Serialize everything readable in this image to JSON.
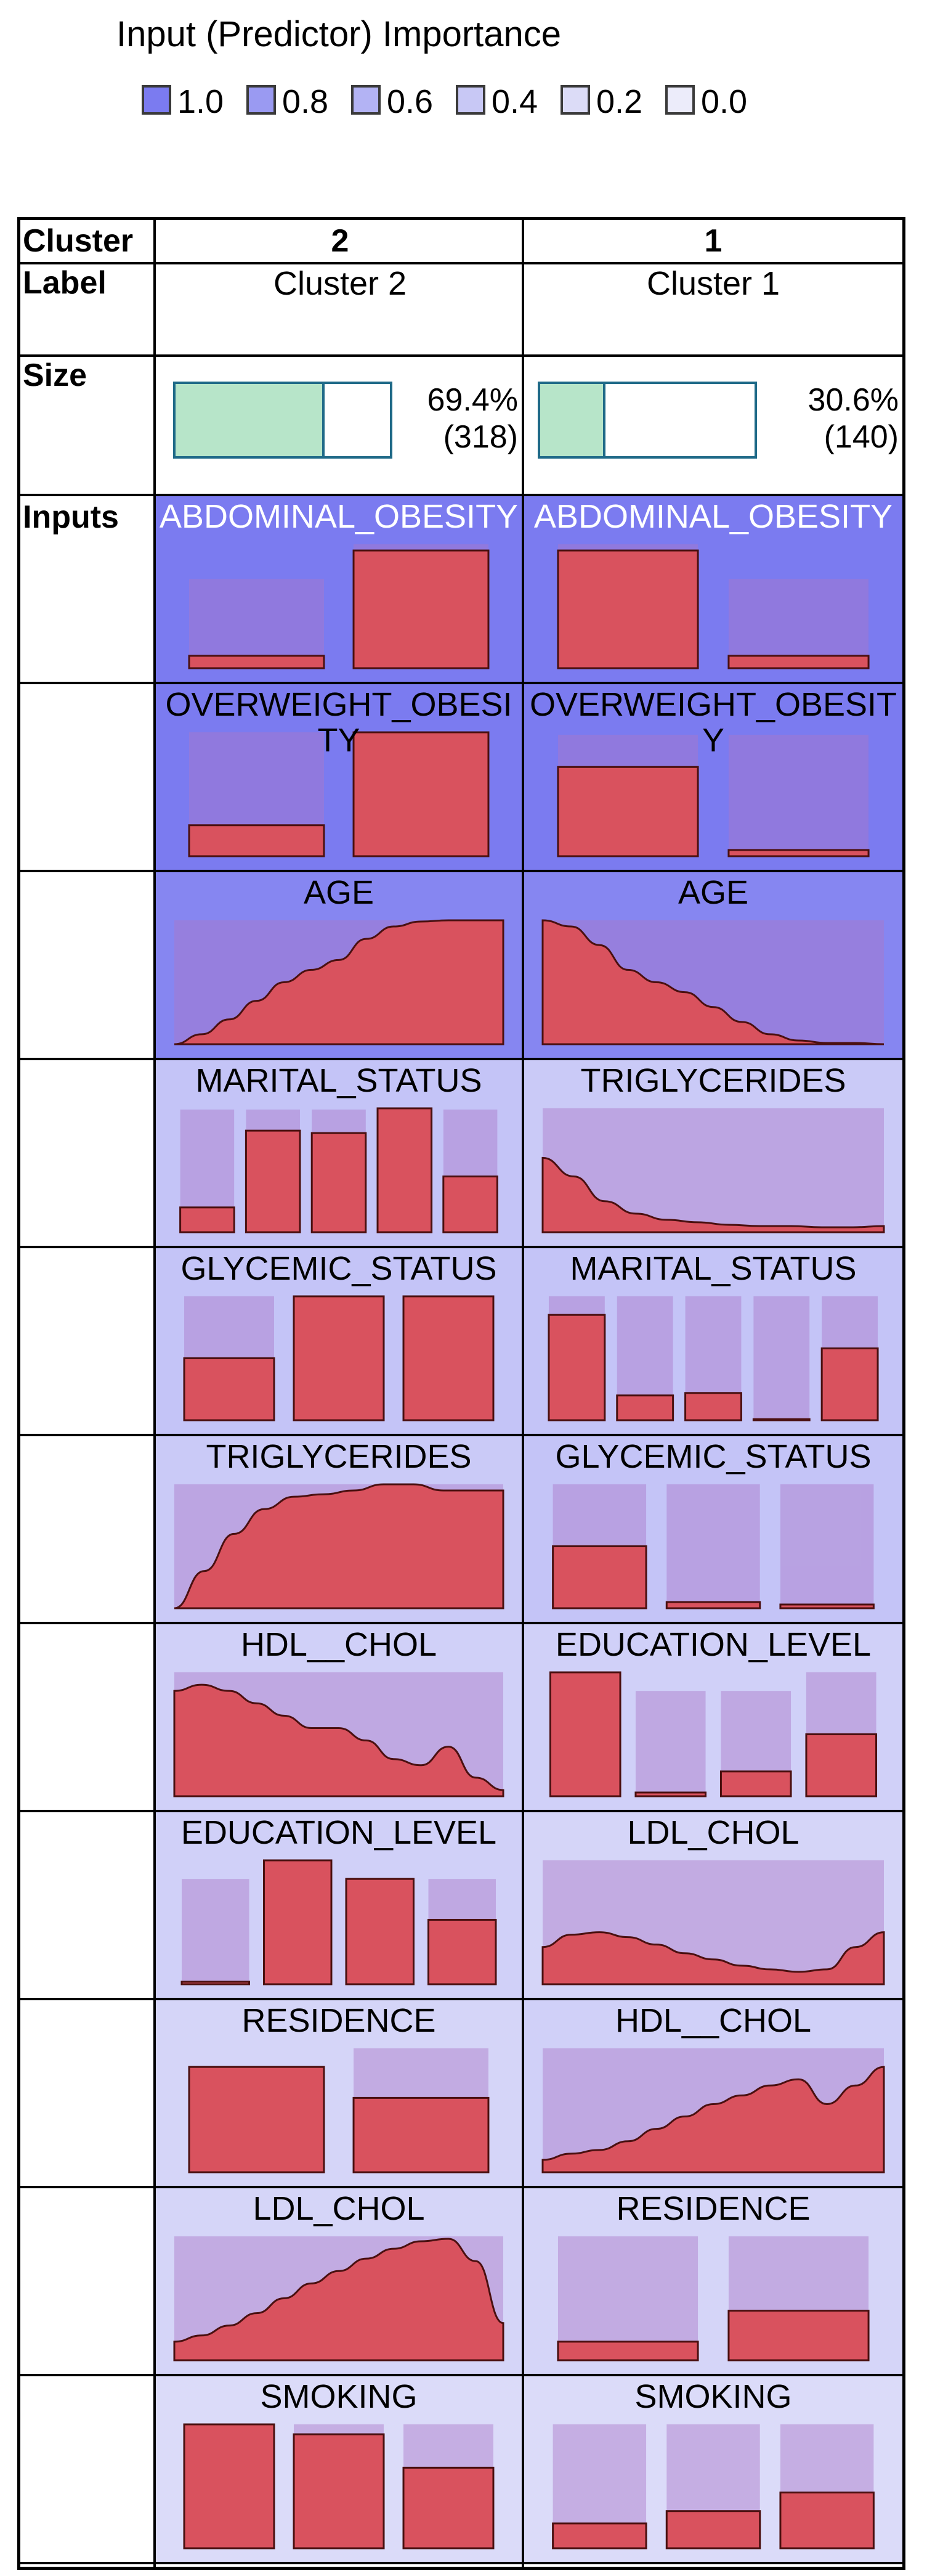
{
  "title": "Input (Predictor) Importance",
  "legend": [
    {
      "label": "1.0",
      "color": "#7b7bf0"
    },
    {
      "label": "0.8",
      "color": "#9a9af2"
    },
    {
      "label": "0.6",
      "color": "#b3b3f4"
    },
    {
      "label": "0.4",
      "color": "#c8c8f5"
    },
    {
      "label": "0.2",
      "color": "#dcdcf7"
    },
    {
      "label": "0.0",
      "color": "#ececfa"
    }
  ],
  "header": {
    "cluster_label": "Cluster",
    "label_label": "Label",
    "size_label": "Size",
    "inputs_label": "Inputs"
  },
  "clusters": [
    {
      "id": "2",
      "label": "Cluster 2",
      "size_pct": "69.4%",
      "size_n": "(318)",
      "size_fraction": 0.694
    },
    {
      "id": "1",
      "label": "Cluster 1",
      "size_pct": "30.6%",
      "size_n": "(140)",
      "size_fraction": 0.306
    }
  ],
  "chart_data": {
    "type": "table",
    "title": "Input (Predictor) Importance",
    "importance_scale": [
      1.0,
      0.8,
      0.6,
      0.4,
      0.2,
      0.0
    ],
    "columns": [
      {
        "cluster": "2",
        "cells": [
          {
            "name": "ABDOMINAL_OBESITY",
            "importance": 1.0,
            "kind": "bar",
            "cluster_values": [
              0.1,
              0.95
            ],
            "overall_values": [
              0.72,
              1.0
            ]
          },
          {
            "name": "OVERWEIGHT_\nOBESITY",
            "importance": 1.0,
            "kind": "bar",
            "cluster_values": [
              0.25,
              1.0
            ],
            "overall_values": [
              1.0,
              1.0
            ]
          },
          {
            "name": "AGE",
            "importance": 0.9,
            "kind": "area",
            "cluster_values": [
              0.0,
              0.08,
              0.2,
              0.35,
              0.5,
              0.6,
              0.68,
              0.85,
              0.95,
              0.99,
              1.0,
              1.0,
              1.0
            ],
            "overall_values": [
              1,
              1,
              1,
              1,
              1,
              1,
              1,
              1,
              1,
              1,
              1,
              1,
              1
            ]
          },
          {
            "name": "MARITAL_STATUS",
            "importance": 0.35,
            "kind": "bar",
            "cluster_values": [
              0.2,
              0.82,
              0.8,
              1.0,
              0.45
            ],
            "overall_values": [
              0.99,
              0.99,
              0.99,
              0.99,
              0.99
            ]
          },
          {
            "name": "GLYCEMIC_STATUS",
            "importance": 0.35,
            "kind": "bar",
            "cluster_values": [
              0.5,
              1.0,
              1.0
            ],
            "overall_values": [
              1.0,
              1.0,
              1.0
            ]
          },
          {
            "name": "TRIGLYCERIDES",
            "importance": 0.3,
            "kind": "area",
            "cluster_values": [
              0.0,
              0.3,
              0.6,
              0.8,
              0.9,
              0.92,
              0.95,
              1.0,
              1.0,
              0.95,
              0.95,
              0.95
            ],
            "overall_values": [
              1,
              1,
              1,
              1,
              1,
              1,
              1,
              1,
              1,
              1,
              1,
              1
            ]
          },
          {
            "name": "HDL__CHOL",
            "importance": 0.25,
            "kind": "area",
            "cluster_values": [
              0.85,
              0.9,
              0.85,
              0.75,
              0.65,
              0.55,
              0.55,
              0.45,
              0.3,
              0.25,
              0.4,
              0.15,
              0.05
            ],
            "overall_values": [
              1,
              1,
              1,
              1,
              1,
              1,
              1,
              1,
              1,
              1,
              1,
              1,
              1
            ]
          },
          {
            "name": "EDUCATION_LEVEL",
            "importance": 0.25,
            "kind": "bar",
            "cluster_values": [
              0.02,
              1.0,
              0.85,
              0.52
            ],
            "overall_values": [
              0.85,
              1.0,
              0.85,
              0.85
            ]
          },
          {
            "name": "RESIDENCE",
            "importance": 0.2,
            "kind": "bar",
            "cluster_values": [
              0.85,
              0.6
            ],
            "overall_values": [
              0.85,
              1.0
            ]
          },
          {
            "name": "LDL_CHOL",
            "importance": 0.2,
            "kind": "area",
            "cluster_values": [
              0.15,
              0.2,
              0.28,
              0.38,
              0.5,
              0.62,
              0.72,
              0.82,
              0.9,
              0.96,
              0.98,
              0.8,
              0.3
            ],
            "overall_values": [
              1,
              1,
              1,
              1,
              1,
              1,
              1,
              1,
              1,
              1,
              1,
              1,
              1
            ]
          },
          {
            "name": "SMOKING",
            "importance": 0.15,
            "kind": "bar",
            "cluster_values": [
              1.0,
              0.92,
              0.65
            ],
            "overall_values": [
              1.0,
              1.0,
              1.0
            ]
          }
        ]
      },
      {
        "cluster": "1",
        "cells": [
          {
            "name": "ABDOMINAL_OBESITY",
            "importance": 1.0,
            "kind": "bar",
            "cluster_values": [
              0.95,
              0.1
            ],
            "overall_values": [
              1.0,
              0.72
            ]
          },
          {
            "name": "OVERWEIGHT_\nOBESITY",
            "importance": 1.0,
            "kind": "bar",
            "cluster_values": [
              0.72,
              0.05
            ],
            "overall_values": [
              0.98,
              0.98
            ]
          },
          {
            "name": "AGE",
            "importance": 0.9,
            "kind": "area",
            "cluster_values": [
              1.0,
              0.95,
              0.8,
              0.6,
              0.5,
              0.42,
              0.3,
              0.18,
              0.08,
              0.03,
              0.01,
              0.01,
              0.0
            ],
            "overall_values": [
              1,
              1,
              1,
              1,
              1,
              1,
              1,
              1,
              1,
              1,
              1,
              1,
              1
            ]
          },
          {
            "name": "TRIGLYCERIDES",
            "importance": 0.3,
            "kind": "area",
            "cluster_values": [
              0.6,
              0.45,
              0.25,
              0.15,
              0.1,
              0.08,
              0.06,
              0.05,
              0.05,
              0.04,
              0.04,
              0.05
            ],
            "overall_values": [
              1,
              1,
              1,
              1,
              1,
              1,
              1,
              1,
              1,
              1,
              1,
              1
            ]
          },
          {
            "name": "MARITAL_STATUS",
            "importance": 0.35,
            "kind": "bar",
            "cluster_values": [
              0.85,
              0.2,
              0.22,
              0.0,
              0.58
            ],
            "overall_values": [
              1.0,
              1.0,
              1.0,
              1.0,
              1.0
            ]
          },
          {
            "name": "GLYCEMIC_STATUS",
            "importance": 0.35,
            "kind": "bar",
            "cluster_values": [
              0.5,
              0.05,
              0.03
            ],
            "overall_values": [
              1.0,
              1.0,
              1.0
            ]
          },
          {
            "name": "EDUCATION_LEVEL",
            "importance": 0.25,
            "kind": "bar",
            "cluster_values": [
              1.0,
              0.03,
              0.2,
              0.5
            ],
            "overall_values": [
              1.0,
              0.85,
              0.85,
              1.0
            ]
          },
          {
            "name": "LDL_CHOL",
            "importance": 0.2,
            "kind": "area",
            "cluster_values": [
              0.3,
              0.4,
              0.42,
              0.38,
              0.32,
              0.25,
              0.2,
              0.15,
              0.12,
              0.1,
              0.12,
              0.3,
              0.42
            ],
            "overall_values": [
              1,
              1,
              1,
              1,
              1,
              1,
              1,
              1,
              1,
              1,
              1,
              1,
              1
            ]
          },
          {
            "name": "HDL__CHOL",
            "importance": 0.25,
            "kind": "area",
            "cluster_values": [
              0.1,
              0.15,
              0.18,
              0.25,
              0.35,
              0.45,
              0.55,
              0.62,
              0.7,
              0.75,
              0.55,
              0.7,
              0.85
            ],
            "overall_values": [
              1,
              1,
              1,
              1,
              1,
              1,
              1,
              1,
              1,
              1,
              1,
              1,
              1
            ]
          },
          {
            "name": "RESIDENCE",
            "importance": 0.2,
            "kind": "bar",
            "cluster_values": [
              0.15,
              0.4
            ],
            "overall_values": [
              1.0,
              1.0
            ]
          },
          {
            "name": "SMOKING",
            "importance": 0.15,
            "kind": "bar",
            "cluster_values": [
              0.2,
              0.3,
              0.45
            ],
            "overall_values": [
              1.0,
              1.0,
              1.0
            ]
          }
        ]
      }
    ]
  }
}
